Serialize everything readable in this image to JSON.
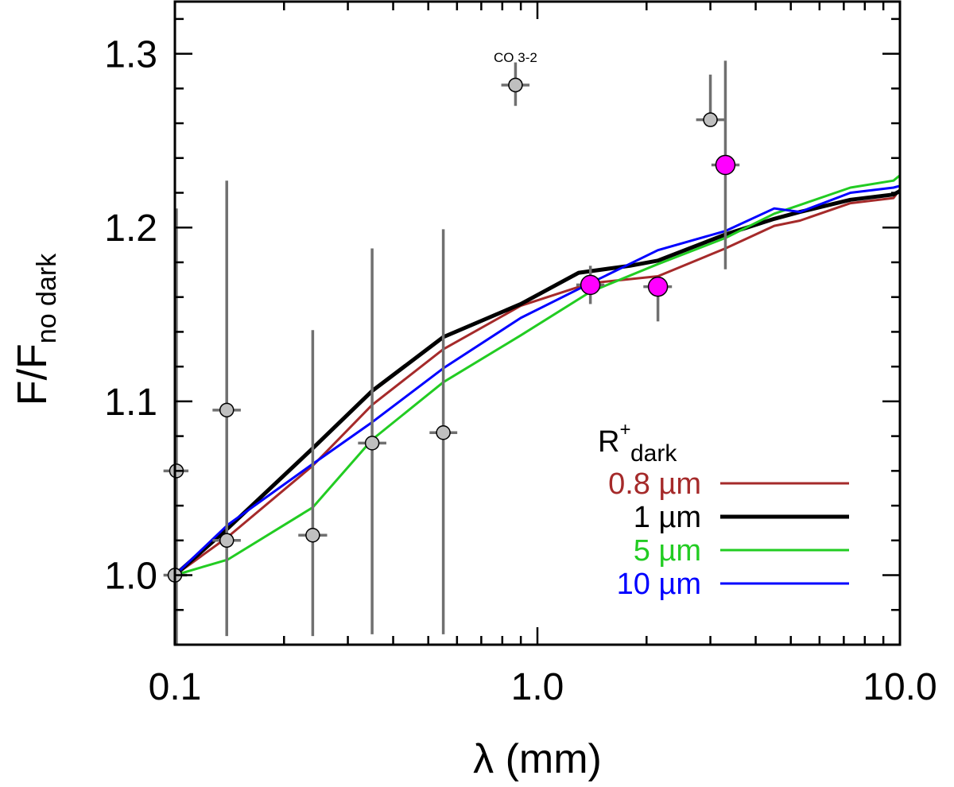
{
  "chart_data": {
    "type": "scatter",
    "xscale": "log",
    "xlim": [
      0.1,
      10.0
    ],
    "ylim": [
      0.96,
      1.33
    ],
    "xlabel": "λ (mm)",
    "ylabel": {
      "main": "F/F",
      "sub": "no dark"
    },
    "x_ticks": [
      {
        "value": 0.1,
        "label": "0.1"
      },
      {
        "value": 1.0,
        "label": "1.0"
      },
      {
        "value": 10.0,
        "label": "10.0"
      }
    ],
    "y_ticks": [
      {
        "value": 1.0,
        "label": "1.0"
      },
      {
        "value": 1.1,
        "label": "1.1"
      },
      {
        "value": 1.2,
        "label": "1.2"
      },
      {
        "value": 1.3,
        "label": "1.3"
      }
    ],
    "y_minor_step": 0.02,
    "annotations": [
      {
        "text": "CO 3-2",
        "x": 0.87,
        "y": 1.298
      }
    ],
    "observed_points": {
      "color": "#bfbfbf",
      "errcolor": "#707070",
      "points": [
        {
          "x": 0.1,
          "y": 1.0,
          "ylo": 0.96,
          "yhi": 1.0,
          "xlo": 0.093,
          "xhi": 0.108
        },
        {
          "x": 0.101,
          "y": 1.06,
          "ylo": 0.96,
          "yhi": 1.211,
          "xlo": 0.093,
          "xhi": 0.109
        },
        {
          "x": 0.139,
          "y": 1.095,
          "ylo": 0.965,
          "yhi": 1.227,
          "xlo": 0.127,
          "xhi": 0.152
        },
        {
          "x": 0.139,
          "y": 1.02,
          "ylo": 1.02,
          "yhi": 1.02,
          "xlo": 0.127,
          "xhi": 0.152
        },
        {
          "x": 0.24,
          "y": 1.023,
          "ylo": 0.965,
          "yhi": 1.141,
          "xlo": 0.219,
          "xhi": 0.263
        },
        {
          "x": 0.35,
          "y": 1.076,
          "ylo": 0.966,
          "yhi": 1.188,
          "xlo": 0.32,
          "xhi": 0.383
        },
        {
          "x": 0.55,
          "y": 1.082,
          "ylo": 0.966,
          "yhi": 1.199,
          "xlo": 0.504,
          "xhi": 0.601
        },
        {
          "x": 0.87,
          "y": 1.282,
          "ylo": 1.27,
          "yhi": 1.295,
          "xlo": 0.795,
          "xhi": 0.951
        },
        {
          "x": 3.0,
          "y": 1.262,
          "ylo": 1.262,
          "yhi": 1.288,
          "xlo": 2.74,
          "xhi": 3.28
        }
      ]
    },
    "highlight_points": {
      "color": "#ff00ff",
      "errcolor": "#707070",
      "points": [
        {
          "x": 1.4,
          "y": 1.167,
          "ylo": 1.156,
          "yhi": 1.178,
          "xlo": 1.28,
          "xhi": 1.53
        },
        {
          "x": 2.15,
          "y": 1.166,
          "ylo": 1.146,
          "yhi": 1.166,
          "xlo": 1.96,
          "xhi": 2.35
        },
        {
          "x": 3.3,
          "y": 1.236,
          "ylo": 1.176,
          "yhi": 1.296,
          "xlo": 3.02,
          "xhi": 3.61
        }
      ]
    },
    "legend": {
      "title": "R",
      "title_sup": "+",
      "title_sub": "dark",
      "position": "bottom-right"
    },
    "series": [
      {
        "name": "0.8 µm",
        "color": "#a52a2a",
        "width": 3,
        "x": [
          0.1,
          0.14,
          0.24,
          0.35,
          0.55,
          0.9,
          1.4,
          2.15,
          3.3,
          4.5,
          5.3,
          7.3,
          9.6,
          10.0
        ],
        "y": [
          1.0,
          1.022,
          1.063,
          1.098,
          1.13,
          1.155,
          1.168,
          1.172,
          1.188,
          1.201,
          1.204,
          1.214,
          1.217,
          1.222
        ]
      },
      {
        "name": "1 µm",
        "color": "#000000",
        "width": 5,
        "x": [
          0.1,
          0.14,
          0.24,
          0.35,
          0.55,
          0.9,
          1.3,
          1.8,
          2.15,
          3.3,
          4.5,
          5.3,
          7.3,
          9.6,
          10.0
        ],
        "y": [
          1.0,
          1.027,
          1.073,
          1.106,
          1.137,
          1.156,
          1.174,
          1.178,
          1.181,
          1.196,
          1.205,
          1.209,
          1.216,
          1.219,
          1.221
        ]
      },
      {
        "name": "5 µm",
        "color": "#22cc22",
        "width": 3,
        "x": [
          0.1,
          0.14,
          0.24,
          0.35,
          0.55,
          0.9,
          1.4,
          2.15,
          3.3,
          4.5,
          5.3,
          7.3,
          9.6,
          10.0
        ],
        "y": [
          1.0,
          1.009,
          1.039,
          1.078,
          1.111,
          1.138,
          1.163,
          1.179,
          1.194,
          1.208,
          1.213,
          1.223,
          1.227,
          1.23
        ]
      },
      {
        "name": "10 µm",
        "color": "#0000ff",
        "width": 3,
        "x": [
          0.1,
          0.14,
          0.24,
          0.35,
          0.55,
          0.9,
          1.4,
          2.15,
          3.3,
          4.5,
          5.3,
          7.3,
          9.6,
          10.0
        ],
        "y": [
          1.0,
          1.029,
          1.064,
          1.088,
          1.119,
          1.148,
          1.168,
          1.187,
          1.198,
          1.211,
          1.209,
          1.22,
          1.223,
          1.224
        ]
      }
    ]
  }
}
